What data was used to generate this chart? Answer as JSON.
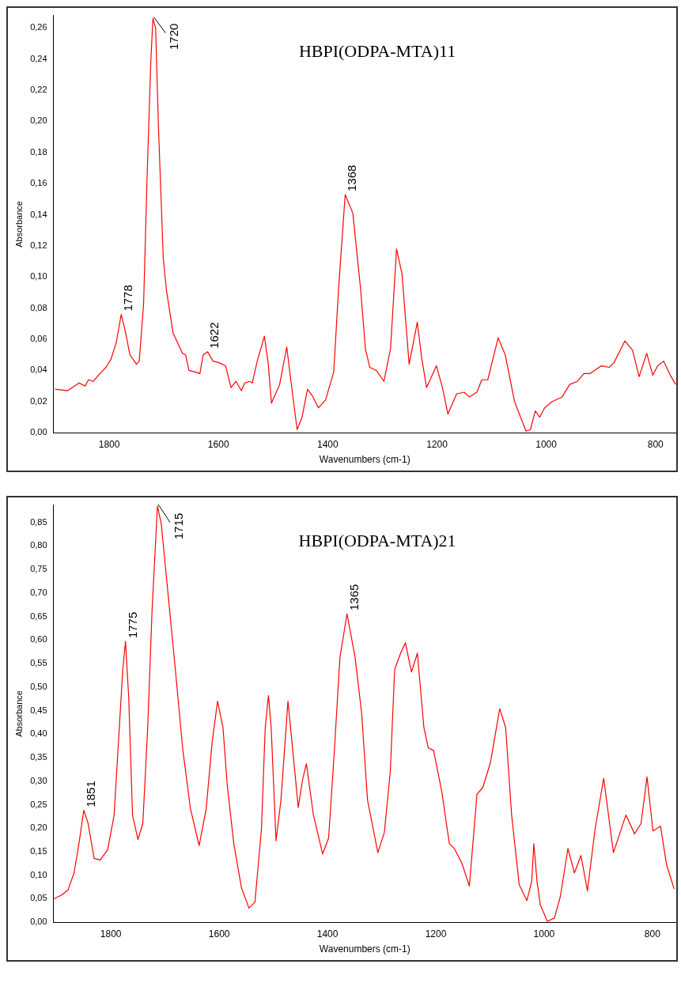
{
  "chart_data": [
    {
      "type": "line",
      "title": "HBPI(ODPA-MTA)11",
      "xlabel": "Wavenumbers (cm-1)",
      "ylabel": "Absorbance",
      "marker": "none",
      "xlim": [
        1902,
        762
      ],
      "xticks": [
        1800,
        1600,
        1400,
        1200,
        1000,
        800
      ],
      "ylim": [
        0,
        0.268
      ],
      "yticks": [
        {
          "value": 0,
          "label": "0,00"
        },
        {
          "value": 0.02,
          "label": "0,02"
        },
        {
          "value": 0.04,
          "label": "0,04"
        },
        {
          "value": 0.06,
          "label": "0,06"
        },
        {
          "value": 0.08,
          "label": "0,08"
        },
        {
          "value": 0.1,
          "label": "0,10"
        },
        {
          "value": 0.12,
          "label": "0,12"
        },
        {
          "value": 0.14,
          "label": "0,14"
        },
        {
          "value": 0.16,
          "label": "0,16"
        },
        {
          "value": 0.18,
          "label": "0,18"
        },
        {
          "value": 0.2,
          "label": "0,20"
        },
        {
          "value": 0.22,
          "label": "0,22"
        },
        {
          "value": 0.24,
          "label": "0,24"
        },
        {
          "value": 0.26,
          "label": "0,26"
        }
      ],
      "annotations": [
        {
          "text": "1778",
          "x": 1778,
          "y": 0.076
        },
        {
          "text": "1720",
          "x": 1720,
          "y": 0.266
        },
        {
          "text": "1622",
          "x": 1620,
          "y": 0.052
        },
        {
          "text": "1368",
          "x": 1368,
          "y": 0.153
        }
      ],
      "series": [
        {
          "color": "#ff0000",
          "x": [
            1899,
            1876,
            1855,
            1844,
            1838,
            1829,
            1817,
            1806,
            1797,
            1787,
            1778,
            1771,
            1762,
            1750,
            1745,
            1737,
            1731,
            1724,
            1720,
            1715,
            1710,
            1701,
            1695,
            1683,
            1675,
            1666,
            1660,
            1654,
            1643,
            1634,
            1628,
            1620,
            1610,
            1599,
            1587,
            1577,
            1568,
            1558,
            1552,
            1543,
            1538,
            1529,
            1516,
            1509,
            1503,
            1488,
            1475,
            1468,
            1456,
            1447,
            1437,
            1427,
            1417,
            1404,
            1389,
            1380,
            1368,
            1354,
            1340,
            1331,
            1323,
            1311,
            1297,
            1285,
            1274,
            1264,
            1251,
            1236,
            1228,
            1219,
            1201,
            1190,
            1180,
            1164,
            1150,
            1141,
            1127,
            1118,
            1107,
            1088,
            1075,
            1058,
            1037,
            1029,
            1020,
            1012,
            1003,
            989,
            971,
            957,
            943,
            931,
            920,
            899,
            885,
            876,
            856,
            842,
            830,
            816,
            805,
            796,
            785,
            773,
            763
          ],
          "values": [
            0.028,
            0.027,
            0.032,
            0.03,
            0.034,
            0.033,
            0.038,
            0.042,
            0.047,
            0.058,
            0.076,
            0.066,
            0.05,
            0.044,
            0.046,
            0.083,
            0.16,
            0.237,
            0.266,
            0.26,
            0.198,
            0.112,
            0.091,
            0.064,
            0.058,
            0.051,
            0.05,
            0.04,
            0.039,
            0.038,
            0.05,
            0.052,
            0.046,
            0.045,
            0.043,
            0.029,
            0.033,
            0.027,
            0.032,
            0.033,
            0.032,
            0.046,
            0.062,
            0.045,
            0.019,
            0.031,
            0.055,
            0.035,
            0.002,
            0.01,
            0.028,
            0.023,
            0.016,
            0.021,
            0.039,
            0.093,
            0.153,
            0.141,
            0.093,
            0.054,
            0.042,
            0.04,
            0.033,
            0.054,
            0.118,
            0.102,
            0.044,
            0.071,
            0.048,
            0.029,
            0.043,
            0.029,
            0.012,
            0.025,
            0.026,
            0.023,
            0.026,
            0.034,
            0.034,
            0.061,
            0.05,
            0.02,
            0.001,
            0.002,
            0.014,
            0.01,
            0.016,
            0.02,
            0.023,
            0.031,
            0.033,
            0.038,
            0.038,
            0.043,
            0.042,
            0.045,
            0.059,
            0.053,
            0.036,
            0.051,
            0.037,
            0.043,
            0.046,
            0.037,
            0.031
          ]
        }
      ]
    },
    {
      "type": "line",
      "title": "HBPI(ODPA-MTA)21",
      "xlabel": "Wavenumbers (cm-1)",
      "ylabel": "Absorbance",
      "marker": "none",
      "xlim": [
        1906,
        756
      ],
      "xticks": [
        1800,
        1600,
        1400,
        1200,
        1000,
        800
      ],
      "ylim": [
        0,
        0.887
      ],
      "yticks": [
        {
          "value": 0,
          "label": "0,00"
        },
        {
          "value": 0.05,
          "label": "0,05"
        },
        {
          "value": 0.1,
          "label": "0,10"
        },
        {
          "value": 0.15,
          "label": "0,15"
        },
        {
          "value": 0.2,
          "label": "0,20"
        },
        {
          "value": 0.25,
          "label": "0,25"
        },
        {
          "value": 0.3,
          "label": "0,30"
        },
        {
          "value": 0.35,
          "label": "0,35"
        },
        {
          "value": 0.4,
          "label": "0,40"
        },
        {
          "value": 0.45,
          "label": "0,45"
        },
        {
          "value": 0.5,
          "label": "0,50"
        },
        {
          "value": 0.55,
          "label": "0,55"
        },
        {
          "value": 0.6,
          "label": "0,60"
        },
        {
          "value": 0.65,
          "label": "0,65"
        },
        {
          "value": 0.7,
          "label": "0,70"
        },
        {
          "value": 0.75,
          "label": "0,75"
        },
        {
          "value": 0.8,
          "label": "0,80"
        },
        {
          "value": 0.85,
          "label": "0,85"
        }
      ],
      "annotations": [
        {
          "text": "1851",
          "x": 1850,
          "y": 0.238
        },
        {
          "text": "1775",
          "x": 1773,
          "y": 0.597
        },
        {
          "text": "1715",
          "x": 1714,
          "y": 0.885
        },
        {
          "text": "1365",
          "x": 1364,
          "y": 0.656
        }
      ],
      "series": [
        {
          "color": "#ff0000",
          "x": [
            1905,
            1891,
            1879,
            1868,
            1859,
            1850,
            1842,
            1831,
            1820,
            1806,
            1794,
            1786,
            1778,
            1773,
            1767,
            1760,
            1750,
            1741,
            1732,
            1724,
            1714,
            1707,
            1695,
            1681,
            1667,
            1653,
            1637,
            1624,
            1613,
            1603,
            1593,
            1585,
            1573,
            1559,
            1545,
            1534,
            1522,
            1515,
            1509,
            1504,
            1495,
            1486,
            1473,
            1463,
            1454,
            1446,
            1439,
            1426,
            1409,
            1398,
            1388,
            1377,
            1364,
            1349,
            1337,
            1326,
            1307,
            1295,
            1284,
            1276,
            1264,
            1256,
            1245,
            1234,
            1222,
            1214,
            1204,
            1189,
            1175,
            1166,
            1152,
            1138,
            1124,
            1113,
            1099,
            1082,
            1071,
            1060,
            1046,
            1032,
            1023,
            1019,
            1013,
            1007,
            994,
            981,
            970,
            956,
            944,
            932,
            920,
            906,
            890,
            872,
            849,
            833,
            821,
            810,
            799,
            785,
            774,
            760
          ],
          "values": [
            0.05,
            0.058,
            0.069,
            0.105,
            0.167,
            0.238,
            0.21,
            0.136,
            0.132,
            0.154,
            0.228,
            0.383,
            0.538,
            0.597,
            0.476,
            0.228,
            0.176,
            0.21,
            0.414,
            0.662,
            0.885,
            0.847,
            0.705,
            0.538,
            0.365,
            0.241,
            0.163,
            0.241,
            0.383,
            0.47,
            0.414,
            0.29,
            0.167,
            0.074,
            0.03,
            0.043,
            0.197,
            0.414,
            0.482,
            0.414,
            0.173,
            0.259,
            0.47,
            0.352,
            0.244,
            0.303,
            0.337,
            0.228,
            0.145,
            0.179,
            0.352,
            0.563,
            0.656,
            0.563,
            0.445,
            0.259,
            0.148,
            0.191,
            0.321,
            0.538,
            0.575,
            0.594,
            0.532,
            0.572,
            0.414,
            0.371,
            0.365,
            0.278,
            0.167,
            0.157,
            0.126,
            0.077,
            0.272,
            0.287,
            0.34,
            0.454,
            0.414,
            0.228,
            0.08,
            0.046,
            0.086,
            0.167,
            0.086,
            0.037,
            0.002,
            0.009,
            0.055,
            0.157,
            0.105,
            0.142,
            0.067,
            0.197,
            0.306,
            0.148,
            0.228,
            0.188,
            0.21,
            0.309,
            0.194,
            0.204,
            0.123,
            0.071
          ]
        }
      ]
    }
  ]
}
